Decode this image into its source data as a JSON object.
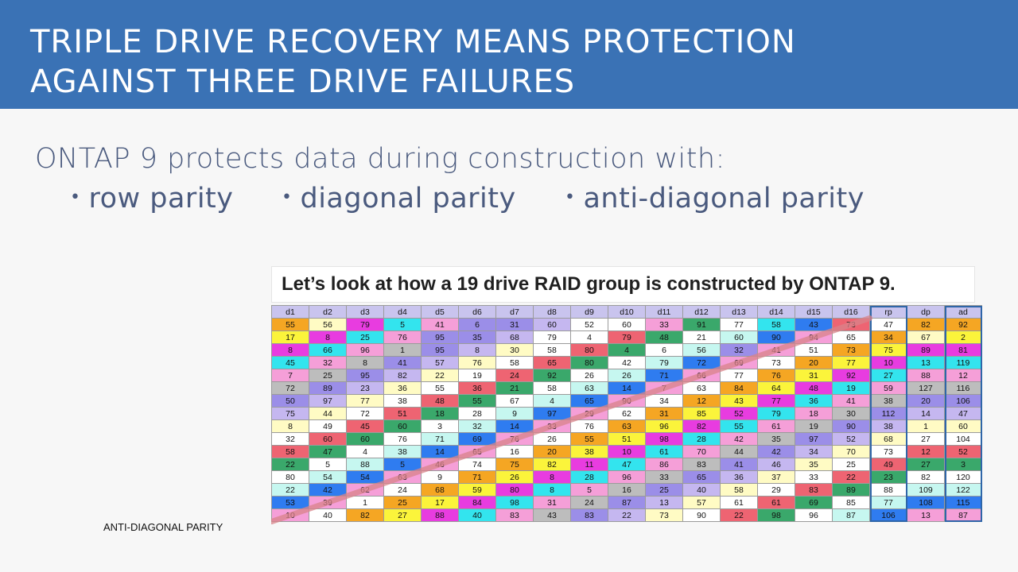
{
  "slide": {
    "title_line1": "TRIPLE DRIVE RECOVERY MEANS PROTECTION",
    "title_line2": "AGAINST THREE DRIVE FAILURES",
    "subtitle": "ONTAP 9 protects data during construction with:",
    "bullets": [
      "row parity",
      "diagonal parity",
      "anti-diagonal parity"
    ],
    "callout": "Let’s look at how a 19 drive RAID group is constructed by ONTAP 9.",
    "diagonal_label": "ANTI-DIAGONAL PARITY",
    "colors": {
      "banner": "#3a72b5",
      "highlight_border": "#2f66a8",
      "diagonal_line": "#d9838a",
      "header_cells": "#c9c4ee"
    }
  },
  "table": {
    "headers": [
      "d1",
      "d2",
      "d3",
      "d4",
      "d5",
      "d6",
      "d7",
      "d8",
      "d9",
      "d10",
      "d11",
      "d12",
      "d13",
      "d14",
      "d15",
      "d16",
      "rp",
      "dp",
      "ad"
    ],
    "highlighted_columns": [
      "rp",
      "ad"
    ],
    "palette": {
      "o": "#f5a623",
      "y": "#fbf43b",
      "m": "#e83ce0",
      "c": "#33e4ee",
      "p": "#f59fd8",
      "v": "#9b8ee8",
      "w": "#ffffff",
      "b": "#2f7cf0",
      "g": "#3aa86b",
      "r": "#ee6472",
      "t": "#c6f7f0",
      "s": "#bdbdbd",
      "l": "#c5b7f0",
      "k": "#fffbc4"
    },
    "rows": [
      {
        "values": [
          "55",
          "56",
          "79",
          "5",
          "41",
          "6",
          "31",
          "60",
          "52",
          "60",
          "33",
          "91",
          "77",
          "58",
          "43",
          "73",
          "47",
          "82",
          "92"
        ],
        "colors": [
          "o",
          "k",
          "m",
          "c",
          "p",
          "v",
          "v",
          "l",
          "w",
          "w",
          "p",
          "g",
          "w",
          "c",
          "b",
          "r",
          "w",
          "o",
          "o"
        ]
      },
      {
        "values": [
          "17",
          "8",
          "25",
          "76",
          "95",
          "35",
          "68",
          "79",
          "4",
          "79",
          "48",
          "21",
          "60",
          "90",
          "94",
          "65",
          "34",
          "67",
          "2"
        ],
        "colors": [
          "y",
          "m",
          "c",
          "p",
          "v",
          "v",
          "l",
          "w",
          "w",
          "r",
          "g",
          "w",
          "t",
          "b",
          "p",
          "w",
          "o",
          "k",
          "y"
        ]
      },
      {
        "values": [
          "8",
          "66",
          "96",
          "1",
          "95",
          "8",
          "30",
          "58",
          "80",
          "4",
          "6",
          "56",
          "32",
          "41",
          "51",
          "73",
          "75",
          "89",
          "81"
        ],
        "colors": [
          "m",
          "c",
          "p",
          "s",
          "v",
          "l",
          "k",
          "w",
          "r",
          "g",
          "w",
          "t",
          "v",
          "p",
          "w",
          "o",
          "y",
          "m",
          "m"
        ]
      },
      {
        "values": [
          "45",
          "32",
          "8",
          "41",
          "57",
          "76",
          "58",
          "65",
          "80",
          "42",
          "79",
          "72",
          "69",
          "73",
          "20",
          "77",
          "10",
          "13",
          "119"
        ],
        "colors": [
          "c",
          "p",
          "s",
          "v",
          "l",
          "k",
          "w",
          "r",
          "g",
          "w",
          "t",
          "b",
          "p",
          "w",
          "o",
          "y",
          "m",
          "c",
          "c"
        ]
      },
      {
        "values": [
          "7",
          "25",
          "95",
          "82",
          "22",
          "19",
          "24",
          "92",
          "26",
          "26",
          "71",
          "66",
          "77",
          "76",
          "31",
          "92",
          "27",
          "88",
          "12"
        ],
        "colors": [
          "p",
          "s",
          "v",
          "l",
          "k",
          "w",
          "r",
          "g",
          "w",
          "t",
          "b",
          "p",
          "w",
          "o",
          "y",
          "m",
          "c",
          "p",
          "p"
        ]
      },
      {
        "values": [
          "72",
          "89",
          "23",
          "36",
          "55",
          "36",
          "21",
          "58",
          "63",
          "14",
          "7",
          "63",
          "84",
          "64",
          "48",
          "19",
          "59",
          "127",
          "116"
        ],
        "colors": [
          "s",
          "v",
          "l",
          "k",
          "w",
          "r",
          "g",
          "w",
          "t",
          "b",
          "p",
          "w",
          "o",
          "y",
          "m",
          "c",
          "p",
          "s",
          "s"
        ]
      },
      {
        "values": [
          "50",
          "97",
          "77",
          "38",
          "48",
          "55",
          "67",
          "4",
          "65",
          "90",
          "34",
          "12",
          "43",
          "77",
          "36",
          "41",
          "38",
          "20",
          "106"
        ],
        "colors": [
          "v",
          "l",
          "k",
          "w",
          "r",
          "g",
          "w",
          "t",
          "b",
          "p",
          "w",
          "o",
          "y",
          "m",
          "c",
          "p",
          "s",
          "v",
          "v"
        ]
      },
      {
        "values": [
          "75",
          "44",
          "72",
          "51",
          "18",
          "28",
          "9",
          "97",
          "29",
          "62",
          "31",
          "85",
          "52",
          "79",
          "18",
          "30",
          "112",
          "14",
          "47"
        ],
        "colors": [
          "l",
          "k",
          "w",
          "r",
          "g",
          "w",
          "t",
          "b",
          "p",
          "w",
          "o",
          "y",
          "m",
          "c",
          "p",
          "s",
          "v",
          "l",
          "l"
        ]
      },
      {
        "values": [
          "8",
          "49",
          "45",
          "60",
          "3",
          "32",
          "14",
          "33",
          "76",
          "63",
          "96",
          "82",
          "55",
          "61",
          "19",
          "90",
          "38",
          "1",
          "60"
        ],
        "colors": [
          "k",
          "w",
          "r",
          "g",
          "w",
          "t",
          "b",
          "p",
          "w",
          "o",
          "y",
          "m",
          "c",
          "p",
          "s",
          "v",
          "l",
          "k",
          "k"
        ]
      },
      {
        "values": [
          "32",
          "60",
          "60",
          "76",
          "71",
          "69",
          "76",
          "26",
          "55",
          "51",
          "98",
          "28",
          "42",
          "35",
          "97",
          "52",
          "68",
          "27",
          "104"
        ],
        "colors": [
          "w",
          "r",
          "g",
          "w",
          "t",
          "b",
          "p",
          "w",
          "o",
          "y",
          "m",
          "c",
          "p",
          "s",
          "v",
          "l",
          "k",
          "w",
          "w"
        ]
      },
      {
        "values": [
          "58",
          "47",
          "4",
          "38",
          "14",
          "65",
          "16",
          "20",
          "38",
          "10",
          "61",
          "70",
          "44",
          "42",
          "34",
          "70",
          "73",
          "12",
          "52"
        ],
        "colors": [
          "r",
          "g",
          "w",
          "t",
          "b",
          "p",
          "w",
          "o",
          "y",
          "m",
          "c",
          "p",
          "s",
          "v",
          "l",
          "k",
          "w",
          "r",
          "r"
        ]
      },
      {
        "values": [
          "22",
          "5",
          "88",
          "5",
          "46",
          "74",
          "75",
          "82",
          "11",
          "47",
          "86",
          "83",
          "41",
          "46",
          "35",
          "25",
          "49",
          "27",
          "3"
        ],
        "colors": [
          "g",
          "w",
          "t",
          "b",
          "p",
          "w",
          "o",
          "y",
          "m",
          "c",
          "p",
          "s",
          "v",
          "l",
          "k",
          "w",
          "r",
          "g",
          "g"
        ]
      },
      {
        "values": [
          "80",
          "54",
          "54",
          "63",
          "9",
          "71",
          "26",
          "8",
          "28",
          "96",
          "33",
          "65",
          "36",
          "37",
          "33",
          "22",
          "23",
          "82",
          "120"
        ],
        "colors": [
          "w",
          "t",
          "b",
          "p",
          "w",
          "o",
          "y",
          "m",
          "c",
          "p",
          "s",
          "v",
          "l",
          "k",
          "w",
          "r",
          "g",
          "w",
          "w"
        ]
      },
      {
        "values": [
          "22",
          "42",
          "62",
          "24",
          "68",
          "59",
          "80",
          "8",
          "5",
          "16",
          "25",
          "40",
          "58",
          "29",
          "83",
          "89",
          "88",
          "109",
          "122"
        ],
        "colors": [
          "t",
          "b",
          "p",
          "w",
          "o",
          "y",
          "m",
          "c",
          "p",
          "s",
          "v",
          "l",
          "k",
          "w",
          "r",
          "g",
          "w",
          "t",
          "t"
        ]
      },
      {
        "values": [
          "53",
          "39",
          "1",
          "25",
          "17",
          "84",
          "98",
          "31",
          "24",
          "87",
          "13",
          "57",
          "61",
          "61",
          "69",
          "85",
          "77",
          "108",
          "115"
        ],
        "colors": [
          "b",
          "p",
          "w",
          "o",
          "y",
          "m",
          "c",
          "p",
          "s",
          "v",
          "l",
          "k",
          "w",
          "r",
          "g",
          "w",
          "t",
          "b",
          "b"
        ]
      },
      {
        "values": [
          "10",
          "40",
          "82",
          "27",
          "88",
          "40",
          "83",
          "43",
          "83",
          "22",
          "73",
          "90",
          "22",
          "98",
          "96",
          "87",
          "106",
          "13",
          "87"
        ],
        "colors": [
          "p",
          "w",
          "o",
          "y",
          "m",
          "c",
          "p",
          "s",
          "v",
          "l",
          "k",
          "w",
          "r",
          "g",
          "w",
          "t",
          "b",
          "p",
          "p"
        ]
      }
    ]
  }
}
